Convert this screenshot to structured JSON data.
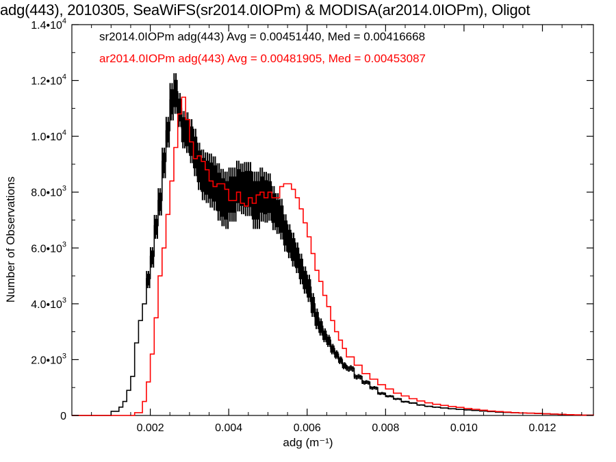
{
  "chart_data": {
    "type": "histogram",
    "title": "adg(443), 2010305, SeaWiFS(sr2014.0IOPm) & MODISA(ar2014.0IOPm), Oligot",
    "xlabel": "adg (m⁻¹)",
    "ylabel": "Number of Observations",
    "xlim": [
      0.0,
      0.0133
    ],
    "ylim": [
      0,
      14000
    ],
    "x_ticks": [
      0.002,
      0.004,
      0.006,
      0.008,
      0.01,
      0.012
    ],
    "x_tick_labels": [
      "0.002",
      "0.004",
      "0.006",
      "0.008",
      "0.010",
      "0.012"
    ],
    "y_ticks": [
      0,
      2000,
      4000,
      6000,
      8000,
      10000,
      12000,
      14000
    ],
    "y_tick_labels": [
      {
        "mant": "0",
        "exp": ""
      },
      {
        "mant": "2.0•1",
        "exp": "0",
        "base": "0",
        "power": "3"
      },
      {
        "mant": "4.0•1",
        "exp": "0",
        "base": "0",
        "power": "3"
      },
      {
        "mant": "6.0•1",
        "exp": "0",
        "base": "0",
        "power": "3"
      },
      {
        "mant": "8.0•1",
        "exp": "0",
        "base": "0",
        "power": "3"
      },
      {
        "mant": "1.0•1",
        "exp": "0",
        "base": "0",
        "power": "4"
      },
      {
        "mant": "1.2•1",
        "exp": "0",
        "base": "0",
        "power": "4"
      },
      {
        "mant": "1.4•1",
        "exp": "0",
        "base": "0",
        "power": "4"
      }
    ],
    "legend": [
      {
        "text": "sr2014.0IOPm adg(443) Avg = 0.00451440, Med = 0.00416668",
        "color": "#000000"
      },
      {
        "text": "ar2014.0IOPm adg(443) Avg = 0.00481905, Med = 0.00453087",
        "color": "#ff0000"
      }
    ],
    "series": [
      {
        "color": "#000000",
        "style": "step",
        "x": [
          0.0,
          0.001,
          0.0012,
          0.0013,
          0.0014,
          0.0015,
          0.0016,
          0.0017,
          0.0018,
          0.0019,
          0.002,
          0.0021,
          0.0022,
          0.0023,
          0.0024,
          0.0025,
          0.0026,
          0.0027,
          0.0028,
          0.0029,
          0.003,
          0.0031,
          0.0032,
          0.0033,
          0.0034,
          0.0035,
          0.0036,
          0.0037,
          0.0038,
          0.0039,
          0.004,
          0.0041,
          0.0042,
          0.0043,
          0.0044,
          0.0045,
          0.0046,
          0.0047,
          0.0048,
          0.0049,
          0.005,
          0.0051,
          0.0052,
          0.0053,
          0.0054,
          0.0055,
          0.0056,
          0.0057,
          0.0058,
          0.0059,
          0.006,
          0.0061,
          0.0062,
          0.0063,
          0.0064,
          0.0065,
          0.0066,
          0.0067,
          0.0068,
          0.0069,
          0.007,
          0.0072,
          0.0074,
          0.0076,
          0.0078,
          0.008,
          0.0082,
          0.0084,
          0.0086,
          0.0088,
          0.009,
          0.0092,
          0.0094,
          0.0096,
          0.0098,
          0.01,
          0.0102,
          0.0104,
          0.0106,
          0.0108,
          0.011,
          0.0112,
          0.0114,
          0.0116,
          0.0118,
          0.012,
          0.0122,
          0.0124,
          0.0126,
          0.0128,
          0.013,
          0.0133
        ],
        "y": [
          0,
          150,
          300,
          500,
          900,
          1400,
          2600,
          3400,
          4000,
          4900,
          5700,
          6800,
          7700,
          9100,
          10200,
          11300,
          11600,
          11000,
          10300,
          10200,
          9900,
          9500,
          9000,
          8700,
          8600,
          8500,
          8400,
          8100,
          7900,
          7800,
          8000,
          8000,
          8300,
          8200,
          8200,
          8200,
          7800,
          7800,
          8000,
          7900,
          7900,
          7500,
          7300,
          7100,
          6600,
          6300,
          6000,
          5700,
          5300,
          4900,
          4600,
          4000,
          3500,
          3200,
          2900,
          2700,
          2400,
          2200,
          2000,
          1800,
          1700,
          1400,
          1200,
          1000,
          800,
          700,
          600,
          500,
          450,
          380,
          330,
          300,
          270,
          240,
          220,
          200,
          180,
          160,
          140,
          120,
          110,
          100,
          90,
          80,
          70,
          60,
          50,
          40,
          30,
          20,
          10,
          0
        ],
        "jitter": [
          0,
          0,
          0,
          0,
          0,
          0,
          0,
          0,
          0,
          500,
          600,
          700,
          800,
          900,
          900,
          1100,
          1200,
          1000,
          1100,
          1200,
          1300,
          1400,
          1400,
          1500,
          1500,
          1600,
          1600,
          1700,
          1700,
          1700,
          1600,
          1600,
          1500,
          1500,
          1600,
          1600,
          1700,
          1700,
          1600,
          1500,
          1400,
          1300,
          1200,
          1200,
          1100,
          1000,
          1000,
          900,
          900,
          800,
          800,
          700,
          600,
          500,
          400,
          350,
          300,
          250,
          220,
          200,
          180,
          150,
          120,
          100,
          80,
          60,
          50,
          40,
          30,
          25,
          20,
          15,
          10,
          10,
          10,
          8,
          6,
          5,
          4,
          3,
          3,
          2,
          2,
          2,
          1,
          1,
          1,
          1,
          0,
          0,
          0,
          0
        ]
      },
      {
        "color": "#ff0000",
        "style": "step",
        "x": [
          0.0,
          0.0016,
          0.0018,
          0.0019,
          0.002,
          0.0021,
          0.0022,
          0.0023,
          0.0024,
          0.0025,
          0.0026,
          0.0027,
          0.0028,
          0.0029,
          0.003,
          0.0031,
          0.0032,
          0.0033,
          0.0034,
          0.0035,
          0.0036,
          0.0037,
          0.0038,
          0.0039,
          0.004,
          0.0041,
          0.0042,
          0.0043,
          0.0044,
          0.0045,
          0.0046,
          0.0047,
          0.0048,
          0.0049,
          0.005,
          0.0051,
          0.0052,
          0.0053,
          0.0054,
          0.0055,
          0.0056,
          0.0057,
          0.0058,
          0.0059,
          0.006,
          0.0061,
          0.0062,
          0.0063,
          0.0064,
          0.0065,
          0.0066,
          0.0067,
          0.0068,
          0.0069,
          0.007,
          0.0072,
          0.0074,
          0.0076,
          0.0078,
          0.008,
          0.0082,
          0.0084,
          0.0086,
          0.0088,
          0.009,
          0.0092,
          0.0094,
          0.0096,
          0.0098,
          0.01,
          0.0102,
          0.0104,
          0.0106,
          0.0108,
          0.011,
          0.0112,
          0.0114,
          0.0116,
          0.0118,
          0.012,
          0.0122,
          0.0124,
          0.0126,
          0.0128,
          0.013,
          0.0133
        ],
        "y": [
          0,
          100,
          500,
          1200,
          2200,
          3500,
          5000,
          6000,
          7200,
          8400,
          9600,
          10800,
          11400,
          10600,
          9800,
          9200,
          9300,
          9100,
          8800,
          8400,
          8200,
          8300,
          8300,
          8100,
          7700,
          7700,
          8000,
          7600,
          7500,
          7800,
          7600,
          7900,
          8000,
          7800,
          8000,
          7800,
          7800,
          8200,
          8300,
          8300,
          8100,
          7800,
          7400,
          6900,
          6400,
          5800,
          5200,
          4800,
          4300,
          3900,
          3400,
          3000,
          2700,
          2400,
          2100,
          1800,
          1500,
          1300,
          1100,
          950,
          800,
          700,
          600,
          520,
          450,
          400,
          360,
          320,
          290,
          250,
          220,
          190,
          160,
          140,
          120,
          100,
          90,
          80,
          70,
          60,
          50,
          40,
          30,
          20,
          10,
          0
        ]
      }
    ]
  }
}
